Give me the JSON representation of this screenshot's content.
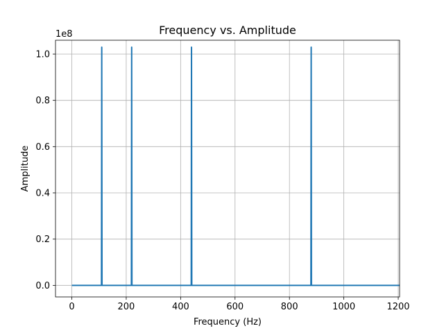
{
  "chart_data": {
    "type": "line",
    "title": "Frequency vs. Amplitude",
    "xlabel": "Frequency (Hz)",
    "ylabel": "Amplitude",
    "offset_text": "1e8",
    "xlim": [
      -60,
      1205
    ],
    "ylim": [
      -5000000,
      106000000
    ],
    "xticks": [
      0,
      200,
      400,
      600,
      800,
      1000,
      1200
    ],
    "xtick_labels": [
      "0",
      "200",
      "400",
      "600",
      "800",
      "1000",
      "1200"
    ],
    "yticks": [
      0,
      20000000,
      40000000,
      60000000,
      80000000,
      100000000
    ],
    "ytick_labels": [
      "0.0",
      "0.2",
      "0.4",
      "0.6",
      "0.8",
      "1.0"
    ],
    "grid": true,
    "series": [
      {
        "color": "#1f77b4",
        "x": [
          0,
          109,
          110,
          111,
          219,
          220,
          221,
          439,
          440,
          441,
          879,
          880,
          881,
          1205
        ],
        "y": [
          0,
          0,
          103000000,
          0,
          0,
          103000000,
          0,
          0,
          103000000,
          0,
          0,
          103000000,
          0,
          0
        ]
      }
    ]
  }
}
